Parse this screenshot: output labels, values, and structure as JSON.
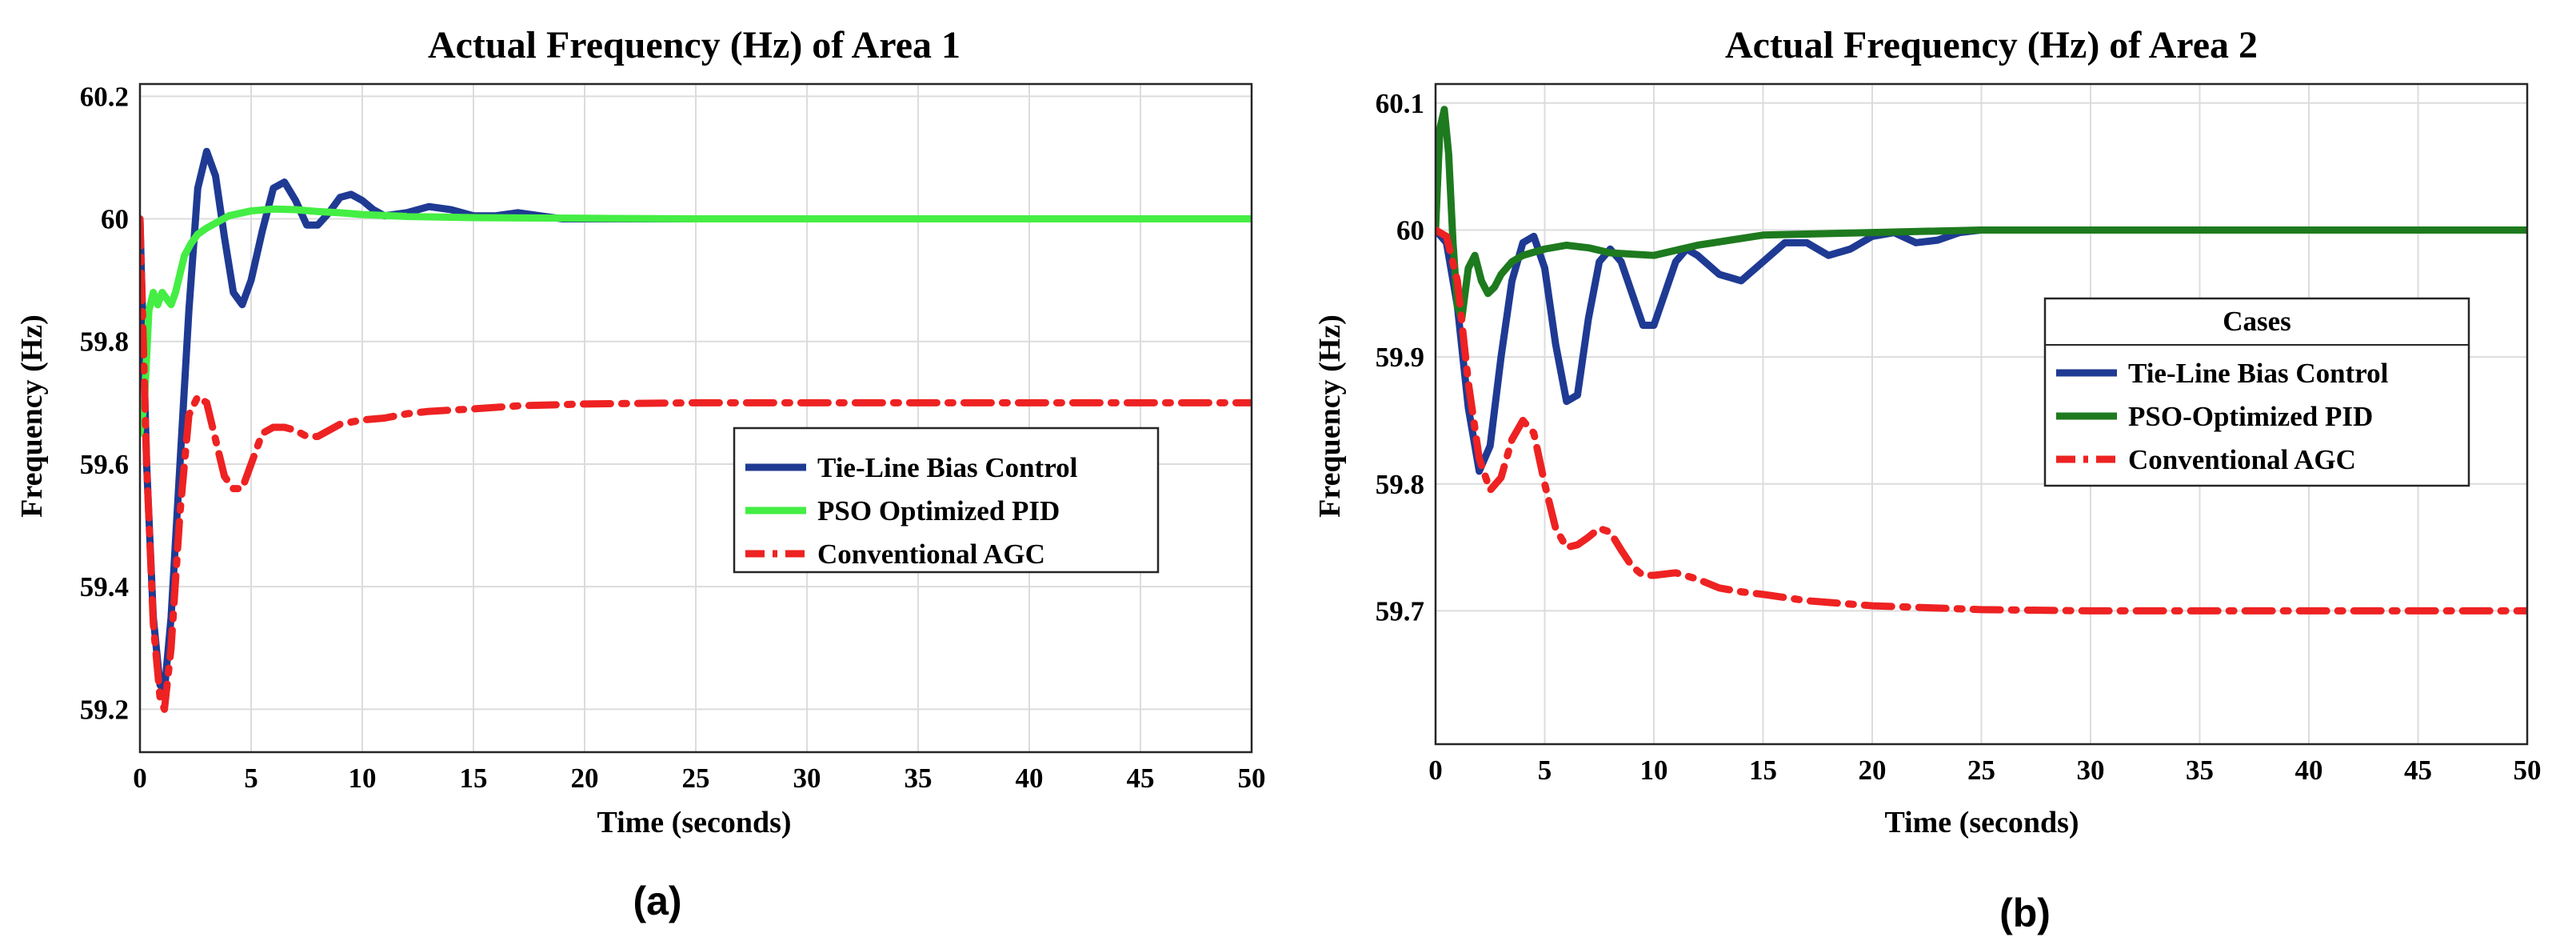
{
  "chart_data": [
    {
      "type": "line",
      "title": "Actual Frequency (Hz) of Area 1",
      "xlabel": "Time (seconds)",
      "ylabel": "Frequency (Hz)",
      "xlim": [
        0,
        50
      ],
      "ylim": [
        59.13,
        60.22
      ],
      "xticks": [
        "0",
        "5",
        "10",
        "15",
        "20",
        "25",
        "30",
        "35",
        "40",
        "45",
        "50"
      ],
      "yticks": [
        "59.2",
        "59.4",
        "59.6",
        "59.8",
        "60",
        "60.2"
      ],
      "panel_label": "(a)",
      "grid": true,
      "legend_position": "center-right",
      "legend_title": "",
      "series": [
        {
          "name": "Tie-Line Bias Control",
          "color": "#1f3a93",
          "style": "solid",
          "x": [
            0,
            0.3,
            0.6,
            0.9,
            1.1,
            1.4,
            1.8,
            2.2,
            2.6,
            3.0,
            3.4,
            3.8,
            4.2,
            4.6,
            5.0,
            5.5,
            6.0,
            6.5,
            7.0,
            7.5,
            8.0,
            8.5,
            9.0,
            9.5,
            10.0,
            10.5,
            11.0,
            12.0,
            13.0,
            14.0,
            15.0,
            16.0,
            17.0,
            18.0,
            19.0,
            20.0,
            22.0,
            25.0,
            30.0,
            35.0,
            40.0,
            45.0,
            50.0
          ],
          "values": [
            60.0,
            59.6,
            59.35,
            59.24,
            59.23,
            59.35,
            59.6,
            59.85,
            60.05,
            60.11,
            60.07,
            59.97,
            59.88,
            59.86,
            59.9,
            59.98,
            60.05,
            60.06,
            60.03,
            59.99,
            59.99,
            60.01,
            60.035,
            60.04,
            60.03,
            60.015,
            60.005,
            60.01,
            60.02,
            60.015,
            60.005,
            60.005,
            60.01,
            60.005,
            60.0,
            60.0,
            60.0,
            60.0,
            60.0,
            60.0,
            60.0,
            60.0,
            60.0
          ]
        },
        {
          "name": "PSO Optimized PID",
          "color": "#44ee44",
          "style": "solid",
          "x": [
            0,
            0.2,
            0.4,
            0.6,
            0.8,
            1.0,
            1.2,
            1.4,
            1.6,
            1.8,
            2.0,
            2.3,
            2.6,
            3.0,
            3.5,
            4.0,
            5.0,
            6.0,
            7.0,
            8.0,
            9.0,
            10.0,
            12.0,
            15.0,
            20.0,
            25.0,
            30.0,
            40.0,
            50.0
          ],
          "values": [
            59.65,
            59.7,
            59.85,
            59.88,
            59.86,
            59.88,
            59.87,
            59.86,
            59.88,
            59.91,
            59.94,
            59.96,
            59.975,
            59.985,
            59.995,
            60.005,
            60.013,
            60.016,
            60.015,
            60.012,
            60.01,
            60.007,
            60.004,
            60.002,
            60.001,
            60.0,
            60.0,
            60.0,
            60.0
          ]
        },
        {
          "name": "Conventional AGC",
          "color": "#ee2222",
          "style": "dashdot",
          "x": [
            0,
            0.3,
            0.6,
            0.9,
            1.1,
            1.4,
            1.8,
            2.2,
            2.6,
            3.0,
            3.4,
            3.8,
            4.2,
            4.6,
            5.0,
            5.5,
            6.0,
            6.5,
            7.0,
            7.5,
            8.0,
            8.5,
            9.0,
            10.0,
            11.0,
            12.0,
            13.0,
            15.0,
            17.0,
            20.0,
            25.0,
            30.0,
            35.0,
            40.0,
            45.0,
            50.0
          ],
          "values": [
            60.0,
            59.6,
            59.34,
            59.22,
            59.2,
            59.3,
            59.52,
            59.68,
            59.71,
            59.7,
            59.64,
            59.58,
            59.56,
            59.56,
            59.6,
            59.65,
            59.66,
            59.66,
            59.655,
            59.645,
            59.645,
            59.655,
            59.665,
            59.672,
            59.675,
            59.682,
            59.686,
            59.69,
            59.695,
            59.698,
            59.7,
            59.7,
            59.7,
            59.7,
            59.7,
            59.7
          ]
        }
      ]
    },
    {
      "type": "line",
      "title": "Actual Frequency (Hz) of Area 2",
      "xlabel": "Time (seconds)",
      "ylabel": "Frequency (Hz)",
      "xlim": [
        0,
        50
      ],
      "ylim": [
        59.595,
        60.115
      ],
      "xticks": [
        "0",
        "5",
        "10",
        "15",
        "20",
        "25",
        "30",
        "35",
        "40",
        "45",
        "50"
      ],
      "yticks": [
        "59.7",
        "59.8",
        "59.9",
        "60",
        "60.1"
      ],
      "panel_label": "(b)",
      "grid": true,
      "legend_position": "center-right",
      "legend_title": "Cases",
      "series": [
        {
          "name": "Tie-Line Bias Control",
          "color": "#1f3a93",
          "style": "solid",
          "x": [
            0,
            0.5,
            1.0,
            1.5,
            2.0,
            2.5,
            3.0,
            3.5,
            4.0,
            4.5,
            5.0,
            5.5,
            6.0,
            6.5,
            7.0,
            7.5,
            8.0,
            8.5,
            9.0,
            9.5,
            10.0,
            10.5,
            11.0,
            11.5,
            12.0,
            13.0,
            14.0,
            15.0,
            16.0,
            17.0,
            18.0,
            19.0,
            20.0,
            21.0,
            22.0,
            23.0,
            24.0,
            25.0,
            27.0,
            30.0,
            35.0,
            40.0,
            45.0,
            50.0
          ],
          "values": [
            60.0,
            59.99,
            59.94,
            59.86,
            59.81,
            59.83,
            59.9,
            59.96,
            59.99,
            59.995,
            59.97,
            59.91,
            59.865,
            59.87,
            59.93,
            59.975,
            59.985,
            59.975,
            59.95,
            59.925,
            59.925,
            59.95,
            59.975,
            59.985,
            59.98,
            59.965,
            59.96,
            59.975,
            59.99,
            59.99,
            59.98,
            59.985,
            59.995,
            59.998,
            59.99,
            59.992,
            59.998,
            60.0,
            60.0,
            60.0,
            60.0,
            60.0,
            60.0,
            60.0
          ]
        },
        {
          "name": "PSO-Optimized PID",
          "color": "#1e7a1e",
          "style": "solid",
          "x": [
            0,
            0.2,
            0.4,
            0.6,
            0.8,
            1.0,
            1.2,
            1.5,
            1.8,
            2.1,
            2.4,
            2.7,
            3.0,
            3.5,
            4.0,
            5.0,
            6.0,
            7.0,
            8.0,
            10.0,
            12.0,
            15.0,
            20.0,
            25.0,
            30.0,
            40.0,
            50.0
          ],
          "values": [
            60.0,
            60.08,
            60.095,
            60.06,
            59.99,
            59.94,
            59.93,
            59.97,
            59.98,
            59.96,
            59.95,
            59.955,
            59.965,
            59.975,
            59.98,
            59.985,
            59.988,
            59.986,
            59.982,
            59.98,
            59.988,
            59.996,
            59.998,
            60.0,
            60.0,
            60.0,
            60.0
          ]
        },
        {
          "name": "Conventional AGC",
          "color": "#ee2222",
          "style": "dashdot",
          "x": [
            0,
            0.5,
            1.0,
            1.5,
            2.0,
            2.5,
            3.0,
            3.5,
            4.0,
            4.5,
            5.0,
            5.5,
            6.0,
            6.5,
            7.0,
            7.5,
            8.0,
            8.5,
            9.0,
            9.5,
            10.0,
            11.0,
            12.0,
            13.0,
            14.0,
            15.0,
            17.0,
            20.0,
            25.0,
            30.0,
            35.0,
            40.0,
            45.0,
            50.0
          ],
          "values": [
            60.0,
            59.995,
            59.96,
            59.88,
            59.82,
            59.795,
            59.805,
            59.835,
            59.85,
            59.84,
            59.8,
            59.765,
            59.75,
            59.752,
            59.758,
            59.765,
            59.762,
            59.748,
            59.735,
            59.728,
            59.728,
            59.73,
            59.725,
            59.718,
            59.715,
            59.713,
            59.708,
            59.704,
            59.701,
            59.7,
            59.7,
            59.7,
            59.7,
            59.7
          ]
        }
      ]
    }
  ]
}
